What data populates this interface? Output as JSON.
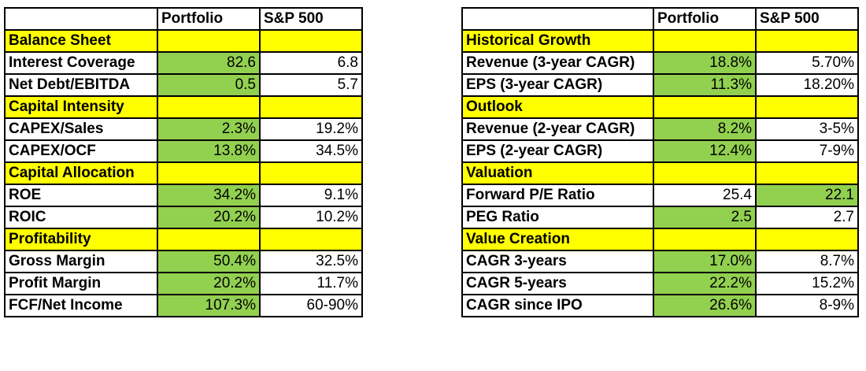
{
  "colors": {
    "section_highlight": "#ffff00",
    "winner_highlight": "#92d050",
    "border": "#000000"
  },
  "tables": [
    {
      "headers": [
        "",
        "Portfolio",
        "S&P 500"
      ],
      "rows": [
        {
          "type": "section",
          "label": "Balance Sheet"
        },
        {
          "type": "metric",
          "label": "Interest Coverage",
          "portfolio": "82.6",
          "sp500": "6.8",
          "highlight": "portfolio"
        },
        {
          "type": "metric",
          "label": "Net Debt/EBITDA",
          "portfolio": "0.5",
          "sp500": "5.7",
          "highlight": "portfolio"
        },
        {
          "type": "section",
          "label": "Capital Intensity"
        },
        {
          "type": "metric",
          "label": "CAPEX/Sales",
          "portfolio": "2.3%",
          "sp500": "19.2%",
          "highlight": "portfolio"
        },
        {
          "type": "metric",
          "label": "CAPEX/OCF",
          "portfolio": "13.8%",
          "sp500": "34.5%",
          "highlight": "portfolio"
        },
        {
          "type": "section",
          "label": "Capital Allocation"
        },
        {
          "type": "metric",
          "label": "ROE",
          "portfolio": "34.2%",
          "sp500": "9.1%",
          "highlight": "portfolio"
        },
        {
          "type": "metric",
          "label": "ROIC",
          "portfolio": "20.2%",
          "sp500": "10.2%",
          "highlight": "portfolio"
        },
        {
          "type": "section",
          "label": "Profitability"
        },
        {
          "type": "metric",
          "label": "Gross Margin",
          "portfolio": "50.4%",
          "sp500": "32.5%",
          "highlight": "portfolio"
        },
        {
          "type": "metric",
          "label": "Profit Margin",
          "portfolio": "20.2%",
          "sp500": "11.7%",
          "highlight": "portfolio"
        },
        {
          "type": "metric",
          "label": "FCF/Net Income",
          "portfolio": "107.3%",
          "sp500": "60-90%",
          "highlight": "portfolio"
        }
      ]
    },
    {
      "headers": [
        "",
        "Portfolio",
        "S&P 500"
      ],
      "rows": [
        {
          "type": "section",
          "label": "Historical Growth"
        },
        {
          "type": "metric",
          "label": "Revenue (3-year CAGR)",
          "portfolio": "18.8%",
          "sp500": "5.70%",
          "highlight": "portfolio"
        },
        {
          "type": "metric",
          "label": "EPS (3-year CAGR)",
          "portfolio": "11.3%",
          "sp500": "18.20%",
          "highlight": "portfolio"
        },
        {
          "type": "section",
          "label": "Outlook"
        },
        {
          "type": "metric",
          "label": "Revenue (2-year CAGR)",
          "portfolio": "8.2%",
          "sp500": "3-5%",
          "highlight": "portfolio"
        },
        {
          "type": "metric",
          "label": "EPS (2-year CAGR)",
          "portfolio": "12.4%",
          "sp500": "7-9%",
          "highlight": "portfolio"
        },
        {
          "type": "section",
          "label": "Valuation"
        },
        {
          "type": "metric",
          "label": "Forward P/E Ratio",
          "portfolio": "25.4",
          "sp500": "22.1",
          "highlight": "sp500"
        },
        {
          "type": "metric",
          "label": "PEG Ratio",
          "portfolio": "2.5",
          "sp500": "2.7",
          "highlight": "portfolio"
        },
        {
          "type": "section",
          "label": "Value Creation"
        },
        {
          "type": "metric",
          "label": "CAGR 3-years",
          "portfolio": "17.0%",
          "sp500": "8.7%",
          "highlight": "portfolio"
        },
        {
          "type": "metric",
          "label": "CAGR 5-years",
          "portfolio": "22.2%",
          "sp500": "15.2%",
          "highlight": "portfolio"
        },
        {
          "type": "metric",
          "label": "CAGR since IPO",
          "portfolio": "26.6%",
          "sp500": "8-9%",
          "highlight": "portfolio"
        }
      ]
    }
  ]
}
